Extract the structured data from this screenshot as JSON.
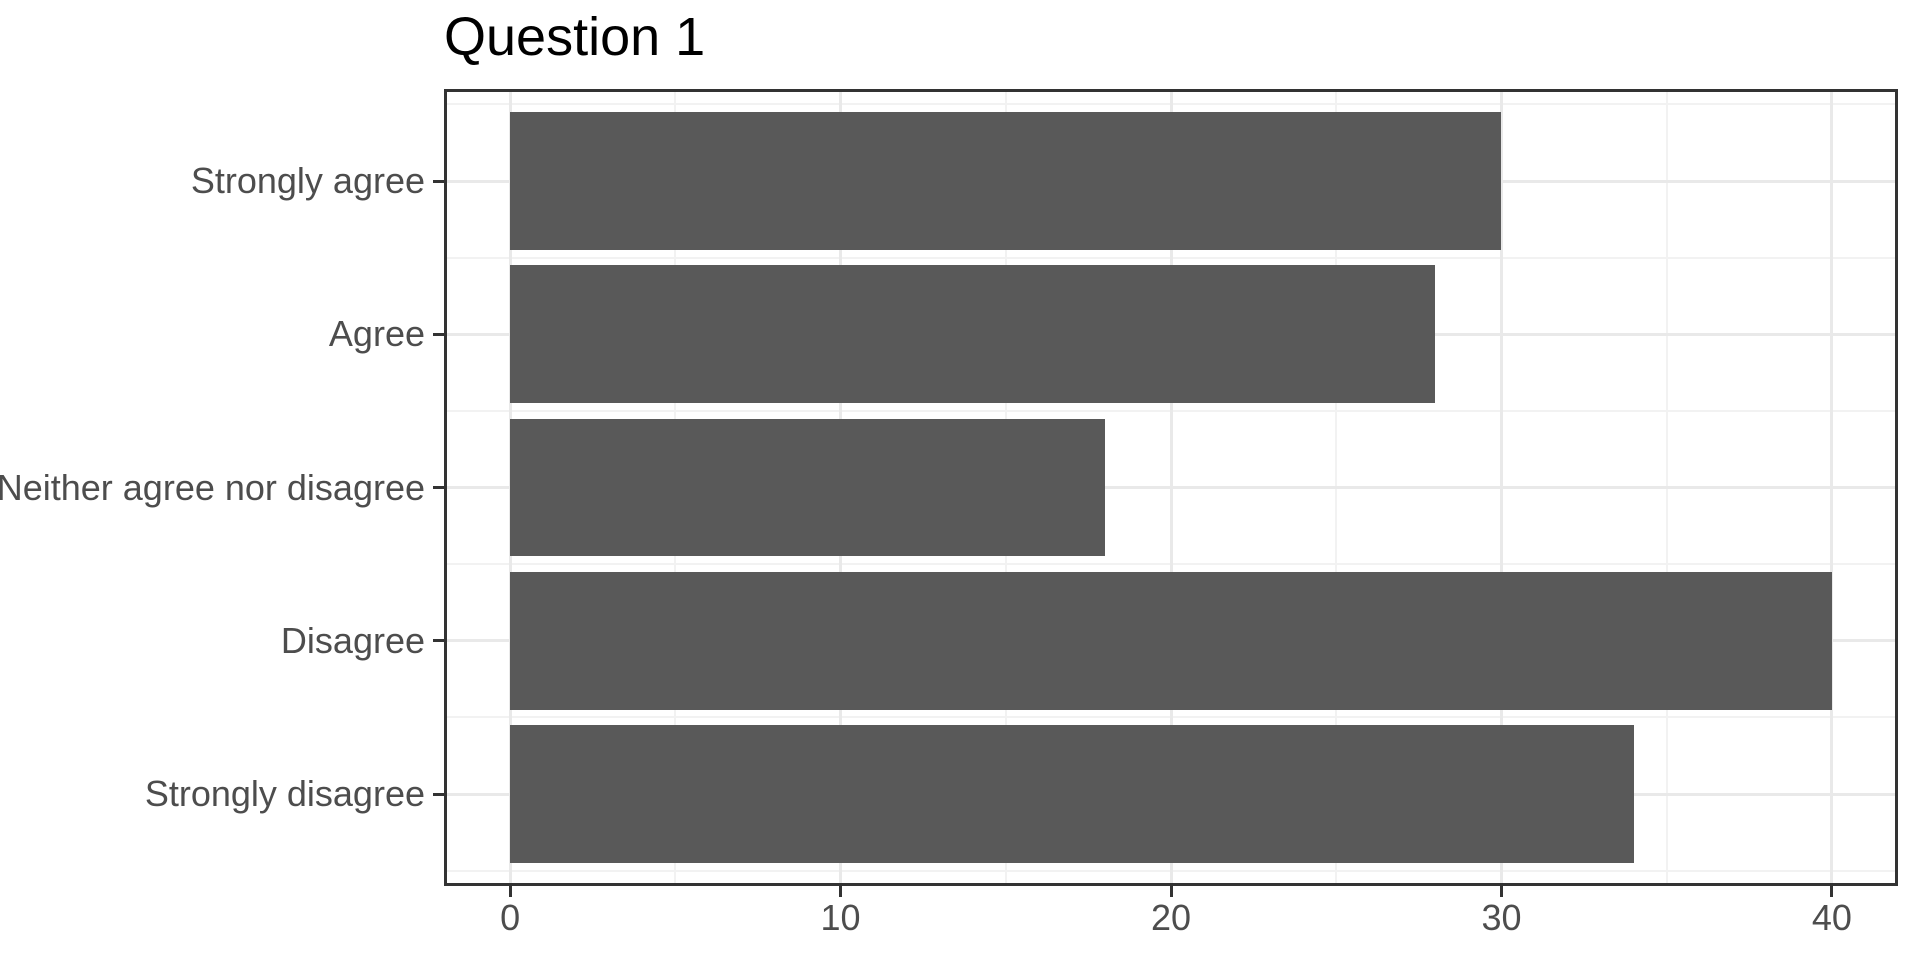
{
  "chart_data": {
    "type": "bar",
    "orientation": "horizontal",
    "title": "Question 1",
    "categories": [
      "Strongly agree",
      "Agree",
      "Neither agree nor disagree",
      "Disagree",
      "Strongly disagree"
    ],
    "values": [
      30,
      28,
      18,
      40,
      34
    ],
    "xlabel": "",
    "ylabel": "",
    "xlim": [
      0,
      40
    ],
    "x_major_ticks": [
      0,
      10,
      20,
      30,
      40
    ],
    "x_minor_ticks": [
      5,
      15,
      25,
      35
    ],
    "grid": "major and minor gridlines, light gray on white panel",
    "legend": "none",
    "colors": {
      "bar": "#595959",
      "panel_border": "#333333",
      "grid_major": "#e9e9e9",
      "grid_minor": "#f2f2f2",
      "tick_mark": "#333333",
      "axis_text": "#4d4d4d",
      "title_text": "#000000",
      "background": "#ffffff"
    }
  }
}
